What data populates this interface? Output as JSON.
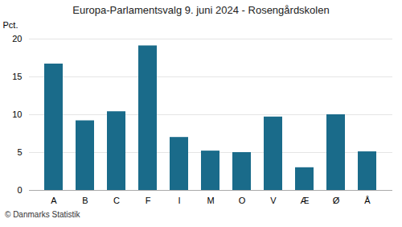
{
  "chart_data": {
    "type": "bar",
    "title": "Europa-Parlamentsvalg 9. juni 2024 - Rosengårdskolen",
    "categories": [
      "A",
      "B",
      "C",
      "F",
      "I",
      "M",
      "O",
      "V",
      "Æ",
      "Ø",
      "Å"
    ],
    "values": [
      16.7,
      9.2,
      10.4,
      19.1,
      7.0,
      5.2,
      5.0,
      9.7,
      3.0,
      10.0,
      5.1
    ],
    "color": "#1a6b8a",
    "ylabel": "Pct.",
    "ylim": [
      0,
      20
    ],
    "yticks": [
      0,
      5,
      10,
      15,
      20
    ],
    "grid": true,
    "footer": "© Danmarks Statistik"
  }
}
